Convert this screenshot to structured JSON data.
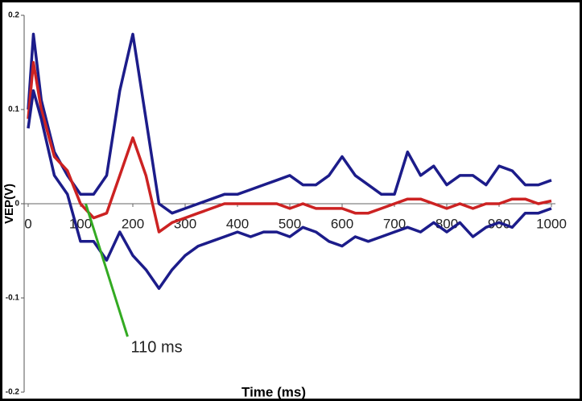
{
  "chart_data": {
    "type": "line",
    "xlabel": "Time (ms)",
    "ylabel": "VEP(V)",
    "x": [
      0,
      10,
      25,
      50,
      75,
      100,
      125,
      150,
      175,
      200,
      225,
      250,
      275,
      300,
      325,
      350,
      375,
      400,
      425,
      450,
      475,
      500,
      525,
      550,
      575,
      600,
      625,
      650,
      675,
      700,
      725,
      750,
      775,
      800,
      825,
      850,
      875,
      900,
      925,
      950,
      975,
      1000
    ],
    "series": [
      {
        "color": "#1c1c8a",
        "values": [
          0.1,
          0.18,
          0.11,
          0.055,
          0.03,
          0.01,
          0.01,
          0.03,
          0.12,
          0.18,
          0.09,
          0.0,
          -0.01,
          -0.005,
          0.0,
          0.005,
          0.01,
          0.01,
          0.015,
          0.02,
          0.025,
          0.03,
          0.02,
          0.02,
          0.03,
          0.05,
          0.03,
          0.02,
          0.01,
          0.01,
          0.055,
          0.03,
          0.04,
          0.02,
          0.03,
          0.03,
          0.02,
          0.04,
          0.035,
          0.02,
          0.02,
          0.025
        ]
      },
      {
        "color": "#cc2222",
        "values": [
          0.09,
          0.15,
          0.1,
          0.05,
          0.035,
          0.0,
          -0.015,
          -0.01,
          0.03,
          0.07,
          0.03,
          -0.03,
          -0.02,
          -0.015,
          -0.01,
          -0.005,
          0.0,
          0.0,
          0.0,
          0.0,
          0.0,
          -0.005,
          0.0,
          -0.005,
          -0.005,
          -0.005,
          -0.01,
          -0.01,
          -0.005,
          0.0,
          0.005,
          0.005,
          0.0,
          -0.005,
          0.0,
          -0.005,
          0.0,
          0.0,
          0.005,
          0.005,
          0.0,
          0.003
        ]
      },
      {
        "color": "#1c1c8a",
        "values": [
          0.08,
          0.12,
          0.09,
          0.03,
          0.01,
          -0.04,
          -0.04,
          -0.06,
          -0.03,
          -0.055,
          -0.07,
          -0.09,
          -0.07,
          -0.055,
          -0.045,
          -0.04,
          -0.035,
          -0.03,
          -0.035,
          -0.03,
          -0.03,
          -0.035,
          -0.025,
          -0.03,
          -0.04,
          -0.045,
          -0.035,
          -0.04,
          -0.035,
          -0.03,
          -0.025,
          -0.03,
          -0.02,
          -0.03,
          -0.02,
          -0.035,
          -0.025,
          -0.02,
          -0.025,
          -0.01,
          -0.01,
          -0.005
        ]
      }
    ],
    "xlim": [
      0,
      1000
    ],
    "xticks": [
      0,
      100,
      200,
      300,
      400,
      500,
      600,
      700,
      800,
      900,
      1000
    ],
    "ylim": [
      -0.2,
      0.2
    ],
    "yticks": [
      0.2,
      0.1,
      0,
      -0.1,
      -0.2
    ],
    "annotation": {
      "text": "110 ms",
      "x": 110,
      "color": "#33aa22"
    }
  }
}
